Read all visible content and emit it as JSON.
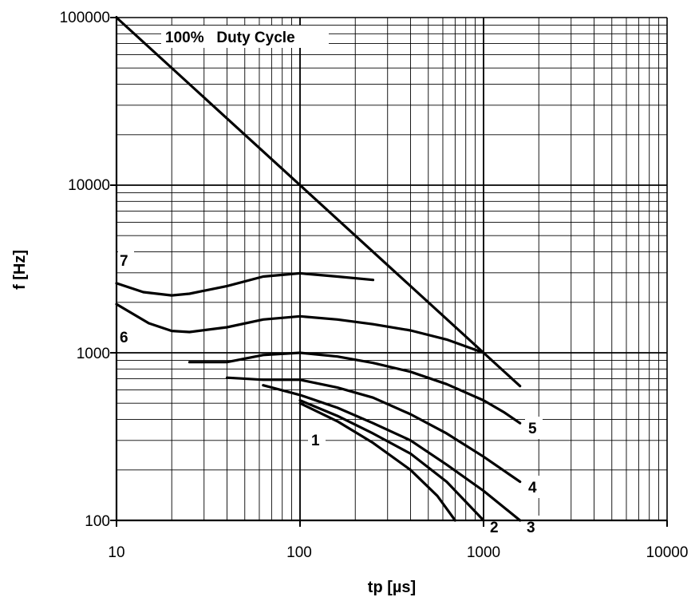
{
  "chart_data": {
    "type": "line",
    "xscale": "log",
    "yscale": "log",
    "xlim": [
      10,
      10000
    ],
    "ylim": [
      100,
      100000
    ],
    "xlabel": "tp [µs]",
    "ylabel": "f [Hz]",
    "grid": true,
    "x_tick_labels": [
      "10",
      "100",
      "1000",
      "10000"
    ],
    "y_tick_labels": [
      "100",
      "1000",
      "10000",
      "100000"
    ],
    "annotation": "100%   Duty Cycle",
    "series": [
      {
        "name": "100%   Duty Cycle",
        "x": [
          10,
          1580
        ],
        "y": [
          100000,
          633
        ]
      },
      {
        "name": "7",
        "x": [
          10,
          14,
          20,
          25,
          40,
          63,
          100,
          160,
          250
        ],
        "y": [
          2600,
          2300,
          2200,
          2250,
          2500,
          2850,
          2980,
          2850,
          2720
        ]
      },
      {
        "name": "6",
        "x": [
          10,
          15,
          20,
          25,
          40,
          63,
          100,
          160,
          250,
          400,
          630,
          1000
        ],
        "y": [
          1950,
          1500,
          1350,
          1330,
          1420,
          1580,
          1650,
          1580,
          1480,
          1360,
          1200,
          1000
        ]
      },
      {
        "name": "5",
        "x": [
          25,
          40,
          63,
          100,
          160,
          250,
          400,
          630,
          1000,
          1300,
          1580
        ],
        "y": [
          880,
          880,
          970,
          1000,
          950,
          870,
          770,
          650,
          520,
          440,
          380
        ]
      },
      {
        "name": "4",
        "x": [
          40,
          63,
          100,
          160,
          250,
          400,
          630,
          1000,
          1580
        ],
        "y": [
          710,
          690,
          690,
          620,
          540,
          430,
          330,
          240,
          170
        ]
      },
      {
        "name": "3",
        "x": [
          63,
          100,
          160,
          250,
          400,
          630,
          1000,
          1580
        ],
        "y": [
          640,
          560,
          470,
          380,
          300,
          215,
          150,
          100
        ]
      },
      {
        "name": "2",
        "x": [
          100,
          160,
          250,
          400,
          630,
          1000
        ],
        "y": [
          520,
          420,
          330,
          250,
          170,
          100
        ]
      },
      {
        "name": "1",
        "x": [
          100,
          160,
          250,
          400,
          560,
          700
        ],
        "y": [
          500,
          390,
          290,
          200,
          140,
          100
        ]
      }
    ],
    "curve_labels": [
      "1",
      "2",
      "3",
      "4",
      "5",
      "6",
      "7"
    ]
  }
}
